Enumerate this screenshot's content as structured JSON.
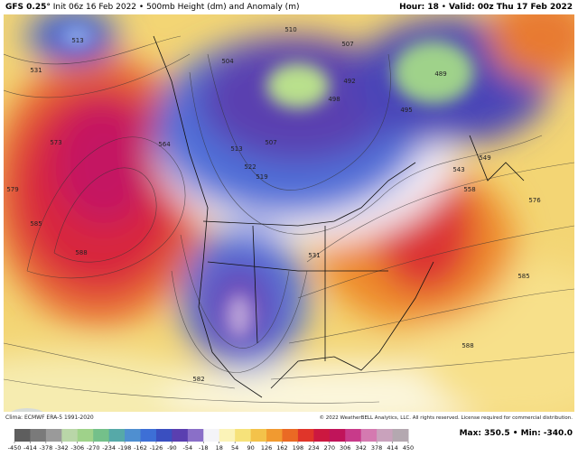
{
  "header": {
    "model": "GFS 0.25°",
    "subtitle": "Init 06z 16 Feb 2022 • 500mb Height (dm) and Anomaly (m)",
    "hour": "Hour: 18",
    "valid": "Valid: 00z Thu 17 Feb 2022"
  },
  "map": {
    "contour_labels": [
      513,
      531,
      573,
      564,
      579,
      585,
      588,
      504,
      510,
      507,
      489,
      492,
      495,
      498,
      513,
      507,
      522,
      519,
      531,
      543,
      549,
      558,
      576,
      585,
      588,
      582
    ]
  },
  "footer": {
    "climo": "Clima: ECMWF ERA-5 1991-2020",
    "brand": "WeatherBELL",
    "copyright": "© 2022 WeatherBELL Analytics, LLC. All rights reserved. License required for commercial distribution.",
    "maxmin": "Max: 350.5 • Min: -340.0"
  },
  "colorbar": {
    "ticks": [
      -450,
      -414,
      -378,
      -342,
      -306,
      -270,
      -234,
      -198,
      -162,
      -126,
      -90,
      -54,
      -18,
      18,
      54,
      90,
      126,
      162,
      198,
      234,
      270,
      306,
      342,
      378,
      414,
      450
    ],
    "colors": [
      "#5e5e5e",
      "#7a7a7a",
      "#9a9a9a",
      "#b9d6a8",
      "#9fd28a",
      "#74c08a",
      "#56a9a8",
      "#4f8fd0",
      "#3d6fd6",
      "#3a4fc0",
      "#5a3fb0",
      "#8a6fc8",
      "#f4f4f8",
      "#fbf3b8",
      "#f6e27a",
      "#f3c24a",
      "#f19a30",
      "#ea6a24",
      "#e0352a",
      "#cc1840",
      "#c0145a",
      "#c83a8a",
      "#d47ab0",
      "#c9a2bc",
      "#b4a8b0"
    ]
  }
}
